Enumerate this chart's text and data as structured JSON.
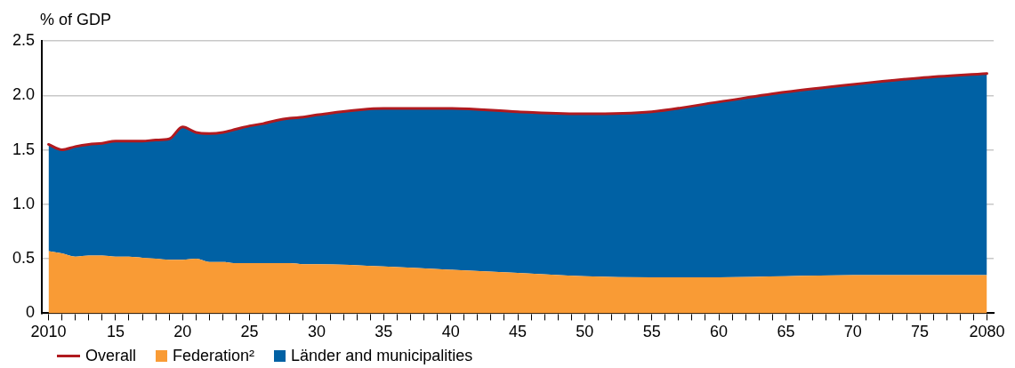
{
  "chart_data": {
    "type": "area",
    "ylabel": "% of GDP",
    "stacked": true,
    "grid": "y",
    "legend": "bottom left",
    "x": [
      2010,
      2011,
      2012,
      2013,
      2014,
      2015,
      2016,
      2017,
      2018,
      2019,
      2020,
      2021,
      2022,
      2023,
      2024,
      2025,
      2026,
      2027,
      2028,
      2029,
      2030,
      2035,
      2040,
      2045,
      2050,
      2055,
      2060,
      2065,
      2070,
      2075,
      2080
    ],
    "xlim": [
      2009.5,
      2080.5
    ],
    "xticks": [
      {
        "value": 2010,
        "label": "2010"
      },
      {
        "value": 2011,
        "label": null
      },
      {
        "value": 2012,
        "label": null
      },
      {
        "value": 2013,
        "label": null
      },
      {
        "value": 2014,
        "label": null
      },
      {
        "value": 2015,
        "label": "15"
      },
      {
        "value": 2016,
        "label": null
      },
      {
        "value": 2017,
        "label": null
      },
      {
        "value": 2018,
        "label": null
      },
      {
        "value": 2019,
        "label": null
      },
      {
        "value": 2020,
        "label": "20"
      },
      {
        "value": 2021,
        "label": null
      },
      {
        "value": 2022,
        "label": null
      },
      {
        "value": 2023,
        "label": null
      },
      {
        "value": 2024,
        "label": null
      },
      {
        "value": 2025,
        "label": "25"
      },
      {
        "value": 2026,
        "label": null
      },
      {
        "value": 2027,
        "label": null
      },
      {
        "value": 2028,
        "label": null
      },
      {
        "value": 2029,
        "label": null
      },
      {
        "value": 2030,
        "label": "30"
      },
      {
        "value": 2031,
        "label": null
      },
      {
        "value": 2032,
        "label": null
      },
      {
        "value": 2033,
        "label": null
      },
      {
        "value": 2034,
        "label": null
      },
      {
        "value": 2035,
        "label": "35"
      },
      {
        "value": 2036,
        "label": null
      },
      {
        "value": 2037,
        "label": null
      },
      {
        "value": 2038,
        "label": null
      },
      {
        "value": 2039,
        "label": null
      },
      {
        "value": 2040,
        "label": "40"
      },
      {
        "value": 2041,
        "label": null
      },
      {
        "value": 2042,
        "label": null
      },
      {
        "value": 2043,
        "label": null
      },
      {
        "value": 2044,
        "label": null
      },
      {
        "value": 2045,
        "label": "45"
      },
      {
        "value": 2046,
        "label": null
      },
      {
        "value": 2047,
        "label": null
      },
      {
        "value": 2048,
        "label": null
      },
      {
        "value": 2049,
        "label": null
      },
      {
        "value": 2050,
        "label": "50"
      },
      {
        "value": 2051,
        "label": null
      },
      {
        "value": 2052,
        "label": null
      },
      {
        "value": 2053,
        "label": null
      },
      {
        "value": 2054,
        "label": null
      },
      {
        "value": 2055,
        "label": "55"
      },
      {
        "value": 2056,
        "label": null
      },
      {
        "value": 2057,
        "label": null
      },
      {
        "value": 2058,
        "label": null
      },
      {
        "value": 2059,
        "label": null
      },
      {
        "value": 2060,
        "label": "60"
      },
      {
        "value": 2061,
        "label": null
      },
      {
        "value": 2062,
        "label": null
      },
      {
        "value": 2063,
        "label": null
      },
      {
        "value": 2064,
        "label": null
      },
      {
        "value": 2065,
        "label": "65"
      },
      {
        "value": 2066,
        "label": null
      },
      {
        "value": 2067,
        "label": null
      },
      {
        "value": 2068,
        "label": null
      },
      {
        "value": 2069,
        "label": null
      },
      {
        "value": 2070,
        "label": "70"
      },
      {
        "value": 2071,
        "label": null
      },
      {
        "value": 2072,
        "label": null
      },
      {
        "value": 2073,
        "label": null
      },
      {
        "value": 2074,
        "label": null
      },
      {
        "value": 2075,
        "label": "75"
      },
      {
        "value": 2076,
        "label": null
      },
      {
        "value": 2077,
        "label": null
      },
      {
        "value": 2078,
        "label": null
      },
      {
        "value": 2079,
        "label": null
      },
      {
        "value": 2080,
        "label": "2080"
      }
    ],
    "ylim": [
      0,
      2.5
    ],
    "yticks": [
      0,
      0.5,
      {
        "value": 1,
        "label": "1.0"
      },
      1.5,
      {
        "value": 2,
        "label": "2.0"
      },
      2.5
    ],
    "series": [
      {
        "name": "Overall",
        "type": "line",
        "color": "#b01a1f",
        "values": [
          1.55,
          1.5,
          1.53,
          1.55,
          1.56,
          1.58,
          1.58,
          1.58,
          1.59,
          1.6,
          1.71,
          1.66,
          1.65,
          1.66,
          1.69,
          1.72,
          1.74,
          1.77,
          1.79,
          1.8,
          1.82,
          1.88,
          1.88,
          1.85,
          1.83,
          1.85,
          1.94,
          2.03,
          2.1,
          2.16,
          2.2
        ]
      },
      {
        "name": "Federation²",
        "color": "#f99b35",
        "values": [
          0.57,
          0.55,
          0.52,
          0.53,
          0.53,
          0.52,
          0.52,
          0.51,
          0.5,
          0.49,
          0.49,
          0.5,
          0.47,
          0.47,
          0.46,
          0.46,
          0.46,
          0.46,
          0.46,
          0.45,
          0.45,
          0.43,
          0.4,
          0.37,
          0.34,
          0.33,
          0.33,
          0.34,
          0.35,
          0.35,
          0.35
        ]
      },
      {
        "name": "Länder and municipalities",
        "color": "#0061a4",
        "values": [
          0.98,
          0.95,
          1.01,
          1.02,
          1.03,
          1.06,
          1.06,
          1.07,
          1.09,
          1.11,
          1.22,
          1.16,
          1.18,
          1.19,
          1.23,
          1.26,
          1.28,
          1.31,
          1.33,
          1.35,
          1.37,
          1.45,
          1.48,
          1.48,
          1.49,
          1.52,
          1.61,
          1.69,
          1.75,
          1.81,
          1.85
        ]
      }
    ]
  }
}
